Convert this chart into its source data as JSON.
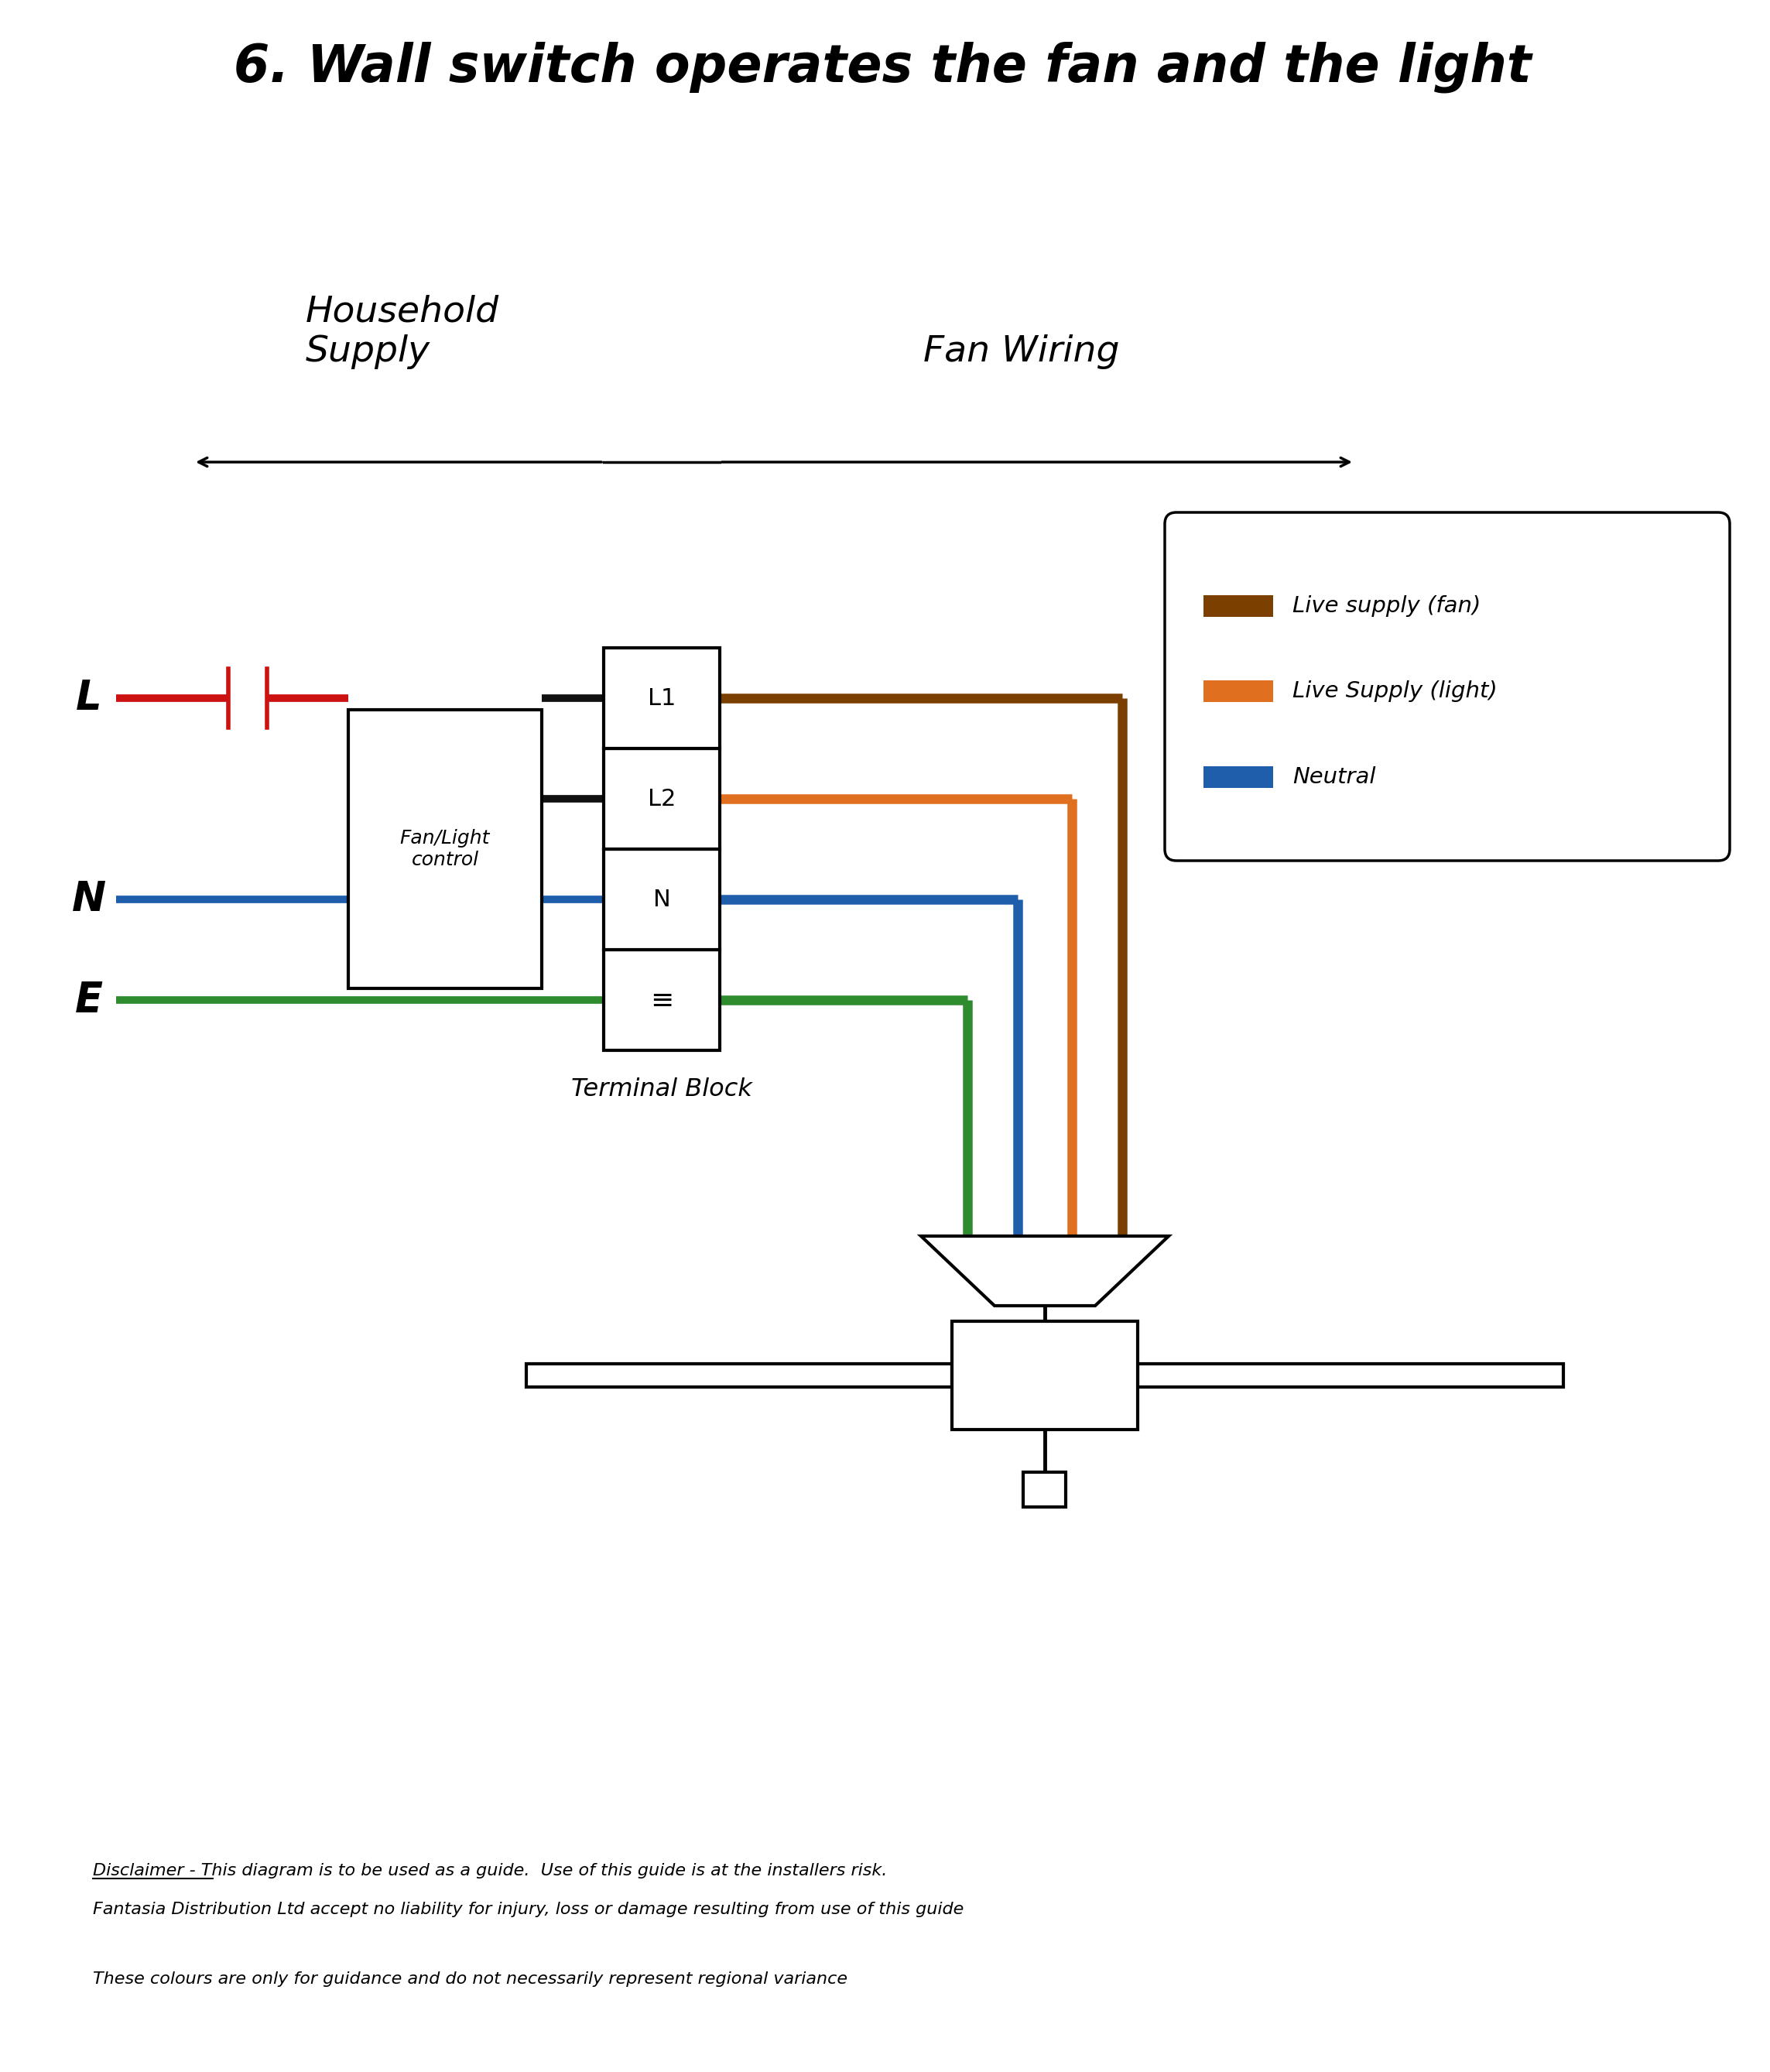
{
  "title": "6. Wall switch operates the fan and the light",
  "title_fontsize": 48,
  "background_color": "#ffffff",
  "wire_colors": {
    "live_fan": "#7B3F00",
    "live_light": "#E07020",
    "neutral": "#1E5EAB",
    "earth": "#2E8B2E",
    "red_live": "#CC1111",
    "black": "#111111"
  },
  "legend_items": [
    {
      "label": "Live supply (fan)",
      "color": "#7B3F00"
    },
    {
      "label": "Live Supply (light)",
      "color": "#E07020"
    },
    {
      "label": "Neutral",
      "color": "#1E5EAB"
    }
  ],
  "terminal_block_labels": [
    "L1",
    "L2",
    "N",
    "≡"
  ],
  "household_supply_label": "Household\nSupply",
  "fan_wiring_label": "Fan Wiring",
  "terminal_block_label": "Terminal Block",
  "fan_light_control_label": "Fan/Light\ncontrol",
  "L_label": "L",
  "N_label": "N",
  "E_label": "E",
  "disclaimer_line1": "Disclaimer - This diagram is to be used as a guide.  Use of this guide is at the installers risk.",
  "disclaimer_line2": "Fantasia Distribution Ltd accept no liability for injury, loss or damage resulting from use of this guide",
  "disclaimer_line3": "These colours are only for guidance and do not necessarily represent regional variance"
}
